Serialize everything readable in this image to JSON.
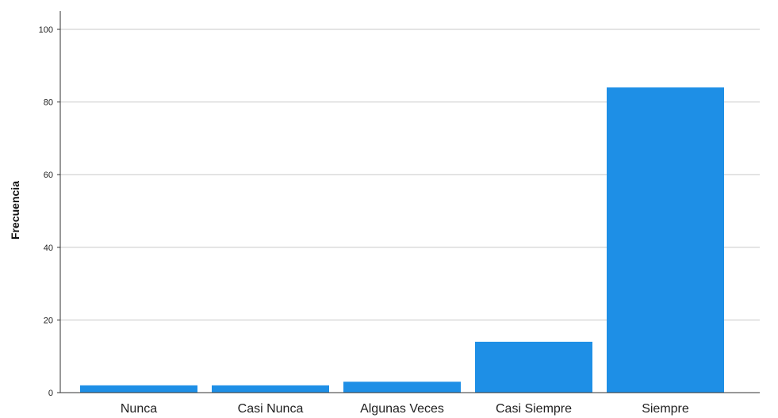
{
  "chart_data": {
    "type": "bar",
    "title": "",
    "xlabel": "",
    "ylabel": "Frecuencia",
    "categories": [
      "Nunca",
      "Casi Nunca",
      "Algunas Veces",
      "Casi Siempre",
      "Siempre"
    ],
    "values": [
      2,
      2,
      3,
      14,
      84
    ],
    "ylim": [
      0,
      100
    ],
    "yticks": [
      0,
      20,
      40,
      60,
      80,
      100
    ],
    "grid": true,
    "legend": "none",
    "bar_color": "#1e8fe6",
    "grid_color": "#c8c8c8",
    "axis_color": "#333333"
  }
}
